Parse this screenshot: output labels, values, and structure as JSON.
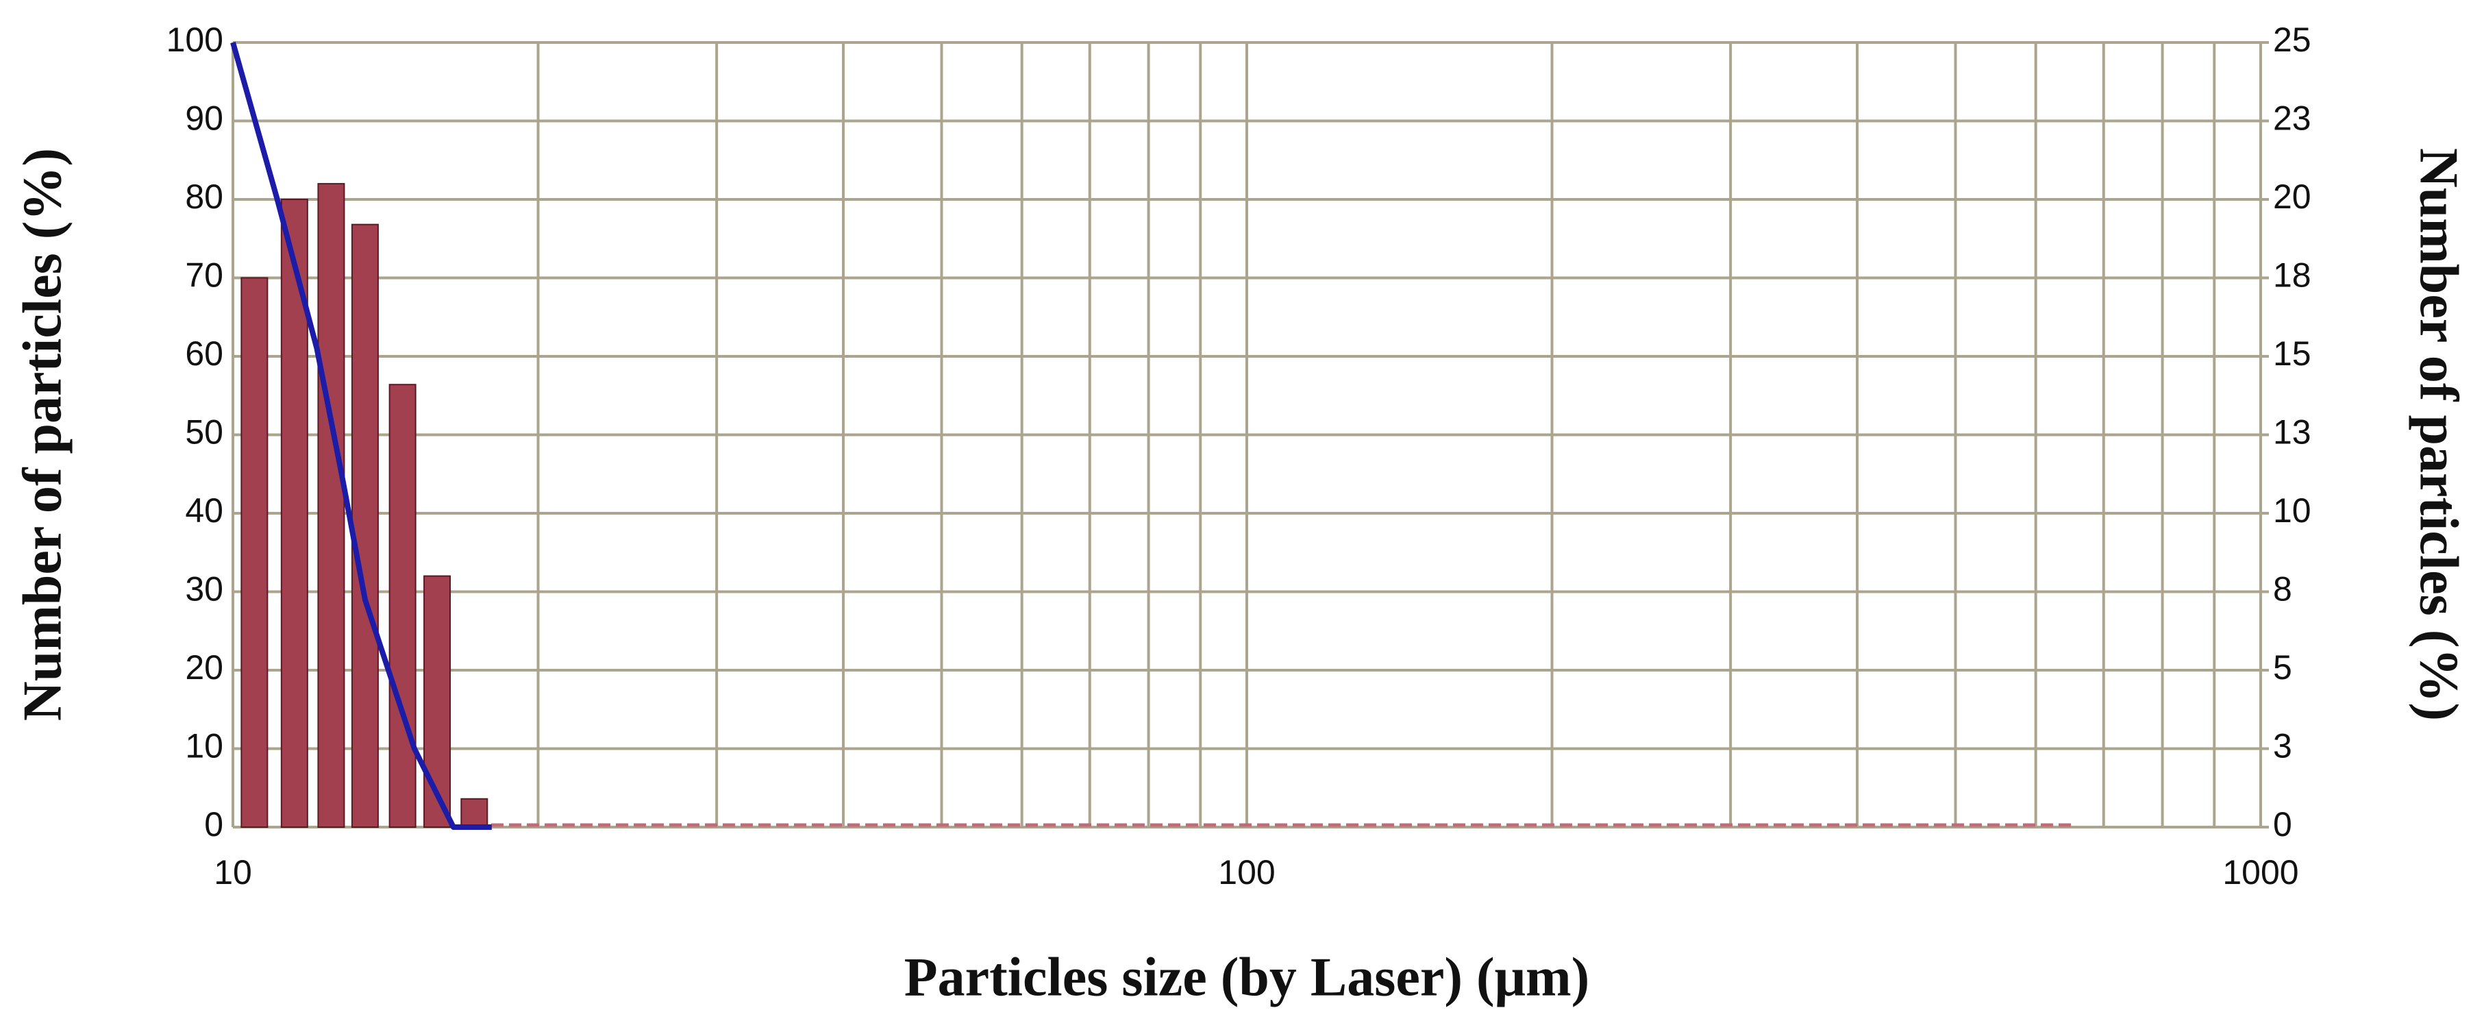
{
  "chart_data": {
    "type": "bar",
    "x_label": "Particles size (by Laser) (μm)",
    "y_label": "Number of particles (%)",
    "y2_label": "Number of particles (%)",
    "xscale": "log",
    "xlim": [
      10,
      1000
    ],
    "xticks": [
      10,
      100,
      1000
    ],
    "ylim": [
      0,
      100
    ],
    "yticks": [
      0,
      10,
      20,
      30,
      40,
      50,
      60,
      70,
      80,
      90,
      100
    ],
    "y2lim": [
      0,
      25
    ],
    "y2ticks": [
      0,
      {
        "value": 2.5,
        "label": "3"
      },
      5,
      {
        "value": 7.5,
        "label": "8"
      },
      10,
      {
        "value": 12.5,
        "label": "13"
      },
      15,
      {
        "value": 17.5,
        "label": "18"
      },
      20,
      {
        "value": 22.5,
        "label": "23"
      },
      25
    ],
    "grid": true,
    "series": [
      {
        "type": "bar",
        "axis": "y2",
        "color": "#a3404f",
        "x": [
          10.5,
          11.5,
          12.5,
          13.5,
          14.7,
          15.9,
          17.3
        ],
        "values": [
          17.5,
          20,
          20.5,
          19.2,
          14.1,
          8,
          0.9
        ]
      },
      {
        "type": "line",
        "axis": "y",
        "color": "#1c1ca8",
        "x": [
          10,
          11.06,
          12.1,
          12.8,
          13.5,
          15.1,
          16.5,
          18
        ],
        "values": [
          100,
          80,
          61,
          45,
          29,
          10,
          0,
          0
        ]
      }
    ]
  }
}
